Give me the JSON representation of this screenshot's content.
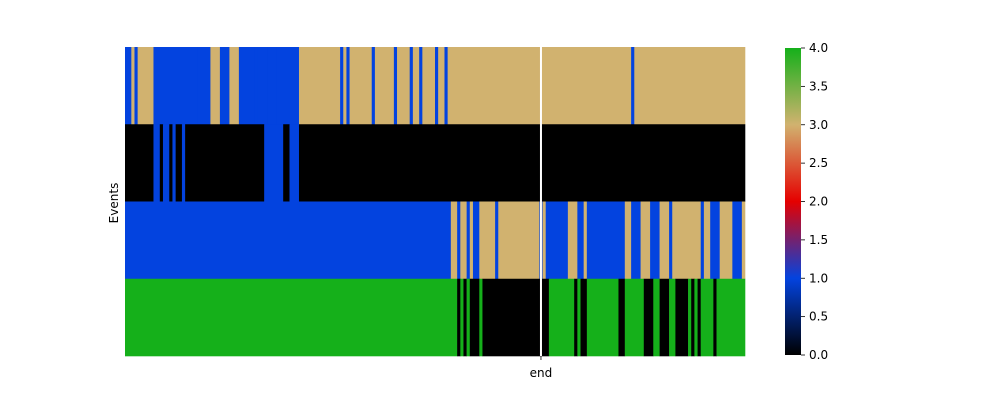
{
  "chart_data": {
    "type": "heatmap",
    "title": "",
    "xlabel": "",
    "ylabel": "Events",
    "x_tick_labels": [
      "end"
    ],
    "y_tick_labels": [],
    "n_columns": 196,
    "end_column_index": 131,
    "rows": [
      {
        "runs": [
          [
            0,
            2,
            1
          ],
          [
            2,
            3,
            3
          ],
          [
            3,
            4,
            1
          ],
          [
            4,
            9,
            3
          ],
          [
            9,
            23,
            1
          ],
          [
            23,
            23,
            3
          ],
          [
            23,
            27,
            1
          ],
          [
            27,
            30,
            3
          ],
          [
            30,
            33,
            1
          ],
          [
            33,
            36,
            3
          ],
          [
            36,
            41,
            1
          ],
          [
            41,
            41,
            3
          ],
          [
            41,
            42,
            1
          ],
          [
            42,
            42,
            3
          ],
          [
            42,
            45,
            1
          ],
          [
            45,
            45,
            3
          ],
          [
            45,
            48,
            1
          ],
          [
            48,
            48,
            3
          ],
          [
            48,
            49,
            1
          ],
          [
            49,
            49,
            3
          ],
          [
            49,
            55,
            1
          ],
          [
            55,
            68,
            3
          ],
          [
            68,
            69,
            1
          ],
          [
            69,
            70,
            3
          ],
          [
            70,
            71,
            1
          ],
          [
            71,
            78,
            3
          ],
          [
            78,
            79,
            1
          ],
          [
            79,
            85,
            3
          ],
          [
            85,
            86,
            1
          ],
          [
            86,
            90,
            3
          ],
          [
            90,
            91,
            1
          ],
          [
            91,
            93,
            3
          ],
          [
            93,
            94,
            1
          ],
          [
            94,
            98,
            3
          ],
          [
            98,
            99,
            1
          ],
          [
            99,
            101,
            3
          ],
          [
            101,
            102,
            1
          ],
          [
            102,
            160,
            3
          ],
          [
            160,
            161,
            1
          ],
          [
            161,
            196,
            3
          ]
        ]
      },
      {
        "runs": [
          [
            0,
            9,
            0
          ],
          [
            9,
            11,
            1
          ],
          [
            11,
            12,
            0
          ],
          [
            12,
            14,
            1
          ],
          [
            14,
            15,
            0
          ],
          [
            15,
            16,
            1
          ],
          [
            16,
            18,
            0
          ],
          [
            18,
            19,
            1
          ],
          [
            19,
            44,
            0
          ],
          [
            44,
            49,
            1
          ],
          [
            49,
            49,
            0
          ],
          [
            49,
            50,
            1
          ],
          [
            50,
            52,
            0
          ],
          [
            52,
            55,
            1
          ],
          [
            55,
            196,
            0
          ]
        ]
      },
      {
        "runs": [
          [
            0,
            103,
            1
          ],
          [
            103,
            105,
            3
          ],
          [
            105,
            106,
            1
          ],
          [
            106,
            108,
            3
          ],
          [
            108,
            109,
            1
          ],
          [
            109,
            110,
            3
          ],
          [
            110,
            112,
            1
          ],
          [
            112,
            117,
            3
          ],
          [
            117,
            118,
            1
          ],
          [
            118,
            131,
            3
          ],
          [
            131,
            132,
            1
          ],
          [
            132,
            133,
            3
          ],
          [
            133,
            140,
            1
          ],
          [
            140,
            143,
            3
          ],
          [
            143,
            145,
            1
          ],
          [
            145,
            146,
            3
          ],
          [
            146,
            158,
            1
          ],
          [
            158,
            160,
            3
          ],
          [
            160,
            163,
            1
          ],
          [
            163,
            166,
            3
          ],
          [
            166,
            169,
            1
          ],
          [
            169,
            172,
            3
          ],
          [
            172,
            173,
            1
          ],
          [
            173,
            182,
            3
          ],
          [
            182,
            183,
            1
          ],
          [
            183,
            185,
            3
          ],
          [
            185,
            188,
            1
          ],
          [
            188,
            192,
            3
          ],
          [
            192,
            195,
            1
          ],
          [
            195,
            196,
            3
          ]
        ]
      },
      {
        "runs": [
          [
            0,
            105,
            4
          ],
          [
            105,
            106,
            0
          ],
          [
            106,
            107,
            4
          ],
          [
            107,
            108,
            0
          ],
          [
            108,
            109,
            4
          ],
          [
            109,
            112,
            0
          ],
          [
            112,
            113,
            4
          ],
          [
            113,
            134,
            0
          ],
          [
            134,
            142,
            4
          ],
          [
            142,
            143,
            0
          ],
          [
            143,
            144,
            4
          ],
          [
            144,
            146,
            0
          ],
          [
            146,
            156,
            4
          ],
          [
            156,
            158,
            0
          ],
          [
            158,
            164,
            4
          ],
          [
            164,
            167,
            0
          ],
          [
            167,
            169,
            4
          ],
          [
            169,
            172,
            0
          ],
          [
            172,
            174,
            4
          ],
          [
            174,
            178,
            0
          ],
          [
            178,
            179,
            4
          ],
          [
            179,
            180,
            0
          ],
          [
            180,
            181,
            4
          ],
          [
            181,
            182,
            0
          ],
          [
            182,
            186,
            4
          ],
          [
            186,
            187,
            0
          ],
          [
            187,
            196,
            4
          ]
        ]
      }
    ],
    "colorbar": {
      "vmin": 0.0,
      "vmax": 4.0,
      "ticks": [
        "0.0",
        "0.5",
        "1.0",
        "1.5",
        "2.0",
        "2.5",
        "3.0",
        "3.5",
        "4.0"
      ],
      "stops": [
        {
          "value": 0.0,
          "color": "#000000"
        },
        {
          "value": 1.0,
          "color": "#0343df"
        },
        {
          "value": 2.0,
          "color": "#e50000"
        },
        {
          "value": 3.0,
          "color": "#d1b26f"
        },
        {
          "value": 4.0,
          "color": "#15b01a"
        }
      ]
    },
    "level_colors": [
      "#000000",
      "#0343df",
      "#e50000",
      "#d1b26f",
      "#15b01a"
    ],
    "end_line_color": "#ffffff"
  }
}
